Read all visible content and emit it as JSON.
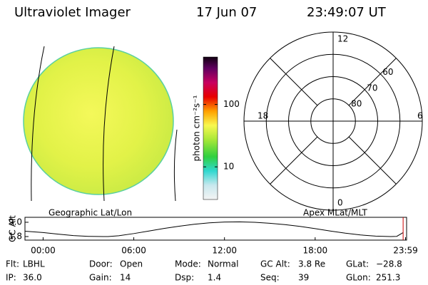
{
  "header": {
    "title": "Ultraviolet Imager",
    "date": "17 Jun 07",
    "time": "23:49:07 UT"
  },
  "image": {
    "label": "Geographic Lat/Lon"
  },
  "colorbar": {
    "label": "photon cm⁻²s⁻¹",
    "log": true,
    "lim": [
      3,
      575
    ],
    "ticks": [
      10,
      100
    ]
  },
  "polar": {
    "label": "Apex MLat/MLT",
    "lat_lim": [
      90,
      50
    ],
    "mlat_rings": [
      80,
      70,
      60
    ],
    "mlt_labels": [
      12,
      18,
      6,
      0
    ]
  },
  "chart_data": {
    "type": "line",
    "ylabel": "GC Alt",
    "x": [
      -1.2,
      0,
      1,
      2,
      3,
      4,
      4.3,
      5,
      6,
      7,
      8,
      9,
      10,
      11,
      12,
      13,
      14,
      15,
      16,
      17,
      18,
      19,
      20,
      21,
      22,
      23,
      23.4,
      23.82
    ],
    "series": [
      {
        "color": "#000000",
        "values": [
          4.5,
          3.8,
          3.0,
          2.3,
          1.9,
          1.8,
          1.8,
          2.2,
          3.3,
          4.6,
          5.9,
          7.0,
          8.0,
          8.7,
          9.1,
          9.2,
          9.0,
          8.5,
          7.8,
          6.9,
          5.8,
          4.6,
          3.5,
          2.6,
          2.0,
          1.8,
          1.9,
          3.8
        ]
      }
    ],
    "xlim": [
      -1.2,
      24.05
    ],
    "ylim": [
      0,
      11.5
    ],
    "xticks": [
      {
        "value": 0,
        "label": "00:00"
      },
      {
        "value": 6,
        "label": "06:00"
      },
      {
        "value": 12,
        "label": "12:00"
      },
      {
        "value": 18,
        "label": "18:00"
      },
      {
        "value": 23.98,
        "label": "23:59"
      }
    ],
    "yticks": [
      1.8,
      {
        "value": 9,
        "label": "9.0"
      }
    ],
    "marker": {
      "x": 23.82,
      "color": "#cc0000"
    }
  },
  "info": [
    [
      {
        "label": "Flt:",
        "value": "LBHL"
      },
      {
        "label": "Door:",
        "value": "Open"
      },
      {
        "label": "Mode:",
        "value": "Normal"
      },
      {
        "label": "GC Alt:",
        "value": "3.8 Re"
      },
      {
        "label": "GLat:",
        "value": "−28.8"
      }
    ],
    [
      {
        "label": "IP:",
        "value": "36.0"
      },
      {
        "label": "Gain:",
        "value": "14"
      },
      {
        "label": "Dsp:",
        "value": "1.4"
      },
      {
        "label": "Seq:",
        "value": "39"
      },
      {
        "label": "GLon:",
        "value": "251.3"
      }
    ]
  ]
}
